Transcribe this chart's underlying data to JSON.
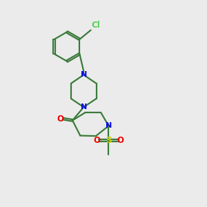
{
  "background_color": "#ebebeb",
  "bond_color": "#3a7a3a",
  "N_color": "#0000ee",
  "O_color": "#ee0000",
  "S_color": "#cccc00",
  "Cl_color": "#55cc55",
  "line_width": 1.6,
  "figsize": [
    3.0,
    3.0
  ],
  "dpi": 100,
  "xlim": [
    0,
    10
  ],
  "ylim": [
    0,
    10
  ]
}
